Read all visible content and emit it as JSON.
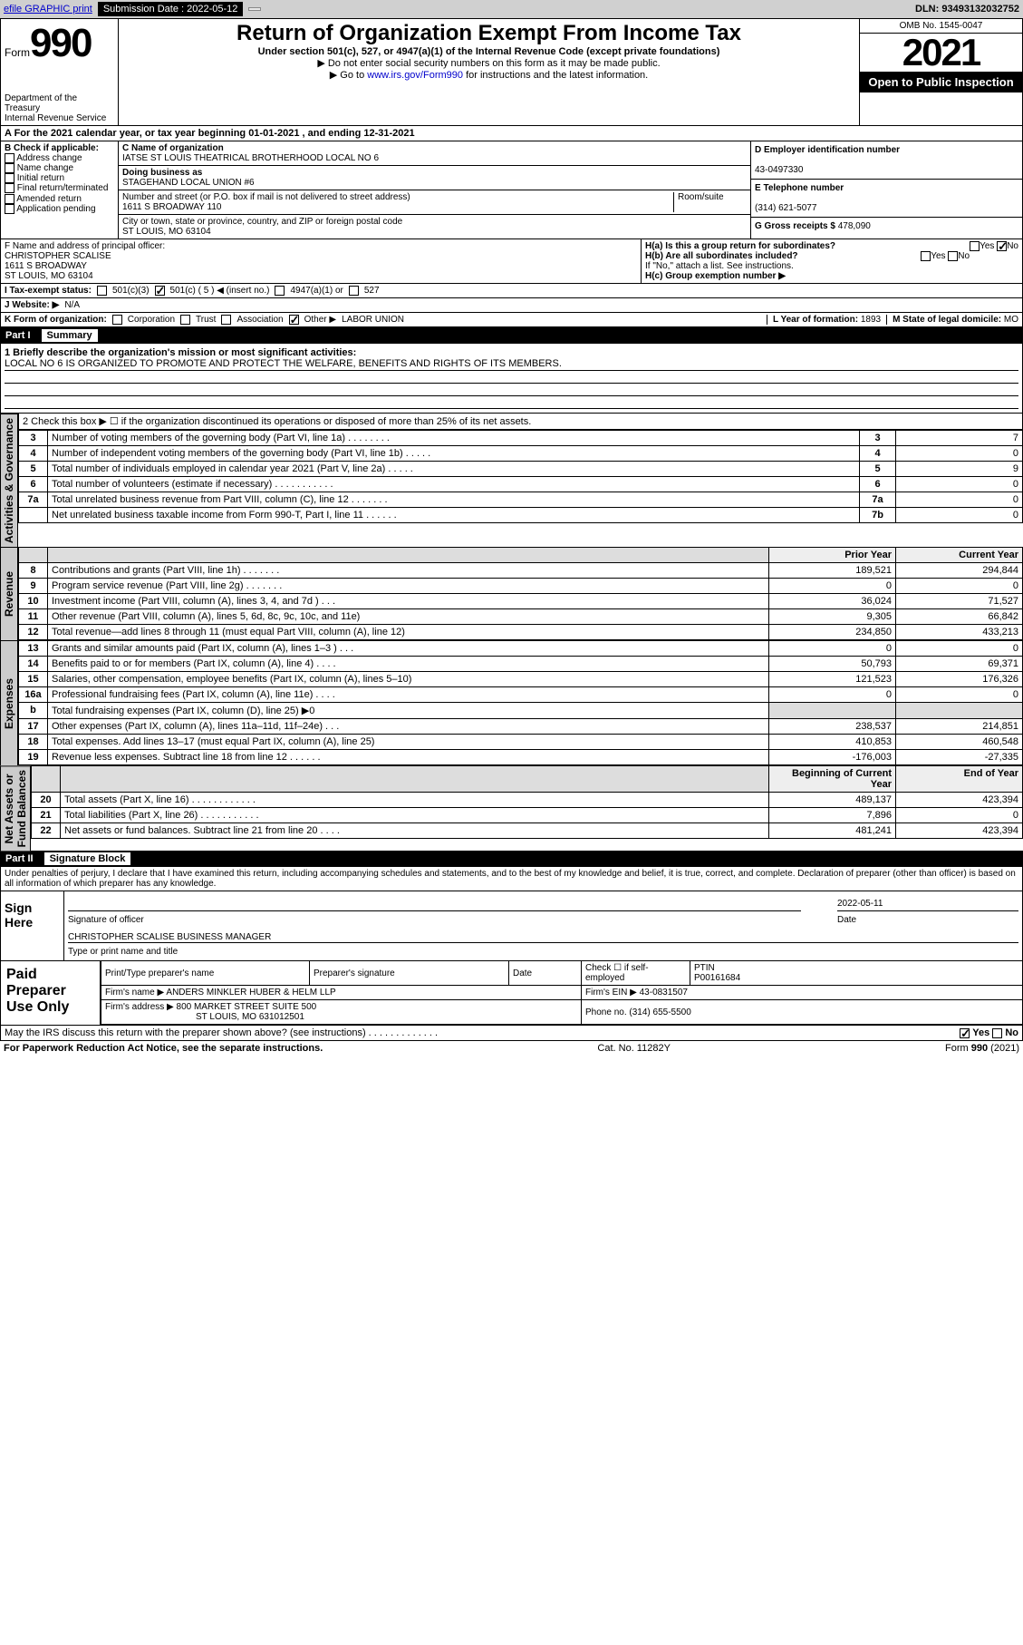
{
  "topbar": {
    "efile_link": "efile GRAPHIC print",
    "submission_label": "Submission Date : 2022-05-12",
    "dln": "DLN: 93493132032752"
  },
  "header": {
    "form_label": "Form",
    "form_number": "990",
    "dept": "Department of the Treasury",
    "irs": "Internal Revenue Service",
    "title": "Return of Organization Exempt From Income Tax",
    "sub1": "Under section 501(c), 527, or 4947(a)(1) of the Internal Revenue Code (except private foundations)",
    "sub2": "▶ Do not enter social security numbers on this form as it may be made public.",
    "sub3_pre": "▶ Go to ",
    "sub3_link": "www.irs.gov/Form990",
    "sub3_post": " for instructions and the latest information.",
    "omb": "OMB No. 1545-0047",
    "year": "2021",
    "open": "Open to Public Inspection"
  },
  "row_a": "A For the 2021 calendar year, or tax year beginning 01-01-2021   , and ending 12-31-2021",
  "block_b": {
    "label": "B Check if applicable:",
    "items": [
      "Address change",
      "Name change",
      "Initial return",
      "Final return/terminated",
      "Amended return",
      "Application pending"
    ]
  },
  "block_c": {
    "name_lbl": "C Name of organization",
    "name": "IATSE ST LOUIS THEATRICAL BROTHERHOOD LOCAL NO 6",
    "dba_lbl": "Doing business as",
    "dba": "STAGEHAND LOCAL UNION #6",
    "addr_lbl": "Number and street (or P.O. box if mail is not delivered to street address)",
    "room_lbl": "Room/suite",
    "addr": "1611 S BROADWAY 110",
    "city_lbl": "City or town, state or province, country, and ZIP or foreign postal code",
    "city": "ST LOUIS, MO  63104"
  },
  "block_d": {
    "d_lbl": "D Employer identification number",
    "d_val": "43-0497330",
    "e_lbl": "E Telephone number",
    "e_val": "(314) 621-5077",
    "g_lbl": "G Gross receipts $",
    "g_val": "478,090"
  },
  "block_f": {
    "lbl": "F Name and address of principal officer:",
    "name": "CHRISTOPHER SCALISE",
    "addr1": "1611 S BROADWAY",
    "addr2": "ST LOUIS, MO  63104"
  },
  "block_h": {
    "ha": "H(a)  Is this a group return for subordinates?",
    "hb": "H(b)  Are all subordinates included?",
    "hb_note": "If \"No,\" attach a list. See instructions.",
    "hc": "H(c)  Group exemption number ▶",
    "yes": "Yes",
    "no": "No"
  },
  "row_i": {
    "lbl": "I   Tax-exempt status:",
    "c3": "501(c)(3)",
    "c5": "501(c) ( 5 ) ◀ (insert no.)",
    "a1": "4947(a)(1) or",
    "s527": "527"
  },
  "row_j": {
    "lbl": "J   Website: ▶",
    "val": "N/A"
  },
  "row_k": {
    "lbl": "K Form of organization:",
    "corp": "Corporation",
    "trust": "Trust",
    "assoc": "Association",
    "other": "Other ▶",
    "other_val": "LABOR UNION",
    "l_lbl": "L Year of formation:",
    "l_val": "1893",
    "m_lbl": "M State of legal domicile:",
    "m_val": "MO"
  },
  "part1": {
    "part": "Part I",
    "title": "Summary",
    "line1_lbl": "1  Briefly describe the organization's mission or most significant activities:",
    "line1_val": "LOCAL NO 6 IS ORGANIZED TO PROMOTE AND PROTECT THE WELFARE, BENEFITS AND RIGHTS OF ITS MEMBERS.",
    "line2": "2   Check this box ▶ ☐  if the organization discontinued its operations or disposed of more than 25% of its net assets.",
    "governance": [
      {
        "n": "3",
        "t": "Number of voting members of the governing body (Part VI, line 1a)   .   .   .   .   .   .   .   .",
        "b": "3",
        "v": "7"
      },
      {
        "n": "4",
        "t": "Number of independent voting members of the governing body (Part VI, line 1b)  .   .   .   .   .",
        "b": "4",
        "v": "0"
      },
      {
        "n": "5",
        "t": "Total number of individuals employed in calendar year 2021 (Part V, line 2a)   .   .   .   .   .",
        "b": "5",
        "v": "9"
      },
      {
        "n": "6",
        "t": "Total number of volunteers (estimate if necessary)   .   .   .   .   .   .   .   .   .   .   .",
        "b": "6",
        "v": "0"
      },
      {
        "n": "7a",
        "t": "Total unrelated business revenue from Part VIII, column (C), line 12  .   .   .   .   .   .   .",
        "b": "7a",
        "v": "0"
      },
      {
        "n": "",
        "t": "Net unrelated business taxable income from Form 990-T, Part I, line 11  .   .   .   .   .   .",
        "b": "7b",
        "v": "0"
      }
    ],
    "col_hdr_prior": "Prior Year",
    "col_hdr_curr": "Current Year",
    "revenue": [
      {
        "n": "8",
        "t": "Contributions and grants (Part VIII, line 1h)   .   .   .   .   .   .   .",
        "p": "189,521",
        "c": "294,844"
      },
      {
        "n": "9",
        "t": "Program service revenue (Part VIII, line 2g)   .   .   .   .   .   .   .",
        "p": "0",
        "c": "0"
      },
      {
        "n": "10",
        "t": "Investment income (Part VIII, column (A), lines 3, 4, and 7d )   .   .   .",
        "p": "36,024",
        "c": "71,527"
      },
      {
        "n": "11",
        "t": "Other revenue (Part VIII, column (A), lines 5, 6d, 8c, 9c, 10c, and 11e)",
        "p": "9,305",
        "c": "66,842"
      },
      {
        "n": "12",
        "t": "Total revenue—add lines 8 through 11 (must equal Part VIII, column (A), line 12)",
        "p": "234,850",
        "c": "433,213"
      }
    ],
    "expenses": [
      {
        "n": "13",
        "t": "Grants and similar amounts paid (Part IX, column (A), lines 1–3 )   .   .   .",
        "p": "0",
        "c": "0"
      },
      {
        "n": "14",
        "t": "Benefits paid to or for members (Part IX, column (A), line 4)   .   .   .   .",
        "p": "50,793",
        "c": "69,371"
      },
      {
        "n": "15",
        "t": "Salaries, other compensation, employee benefits (Part IX, column (A), lines 5–10)",
        "p": "121,523",
        "c": "176,326"
      },
      {
        "n": "16a",
        "t": "Professional fundraising fees (Part IX, column (A), line 11e)   .   .   .   .",
        "p": "0",
        "c": "0"
      },
      {
        "n": "b",
        "t": "Total fundraising expenses (Part IX, column (D), line 25) ▶0",
        "p": "",
        "c": "",
        "shade": true
      },
      {
        "n": "17",
        "t": "Other expenses (Part IX, column (A), lines 11a–11d, 11f–24e)  .   .   .",
        "p": "238,537",
        "c": "214,851"
      },
      {
        "n": "18",
        "t": "Total expenses. Add lines 13–17 (must equal Part IX, column (A), line 25)",
        "p": "410,853",
        "c": "460,548"
      },
      {
        "n": "19",
        "t": "Revenue less expenses. Subtract line 18 from line 12  .   .   .   .   .   .",
        "p": "-176,003",
        "c": "-27,335"
      }
    ],
    "col_hdr_beg": "Beginning of Current Year",
    "col_hdr_end": "End of Year",
    "netassets": [
      {
        "n": "20",
        "t": "Total assets (Part X, line 16)  .   .   .   .   .   .   .   .   .   .   .   .",
        "p": "489,137",
        "c": "423,394"
      },
      {
        "n": "21",
        "t": "Total liabilities (Part X, line 26)  .   .   .   .   .   .   .   .   .   .   .",
        "p": "7,896",
        "c": "0"
      },
      {
        "n": "22",
        "t": "Net assets or fund balances. Subtract line 21 from line 20  .   .   .   .",
        "p": "481,241",
        "c": "423,394"
      }
    ]
  },
  "part2": {
    "part": "Part II",
    "title": "Signature Block",
    "decl": "Under penalties of perjury, I declare that I have examined this return, including accompanying schedules and statements, and to the best of my knowledge and belief, it is true, correct, and complete. Declaration of preparer (other than officer) is based on all information of which preparer has any knowledge.",
    "sign_here": "Sign Here",
    "sig_off": "Signature of officer",
    "date_lbl": "Date",
    "date": "2022-05-11",
    "name": "CHRISTOPHER SCALISE  BUSINESS MANAGER",
    "name_lbl": "Type or print name and title",
    "paid": "Paid Preparer Use Only",
    "prep_name_lbl": "Print/Type preparer's name",
    "prep_sig_lbl": "Preparer's signature",
    "check_lbl": "Check ☐ if self-employed",
    "ptin_lbl": "PTIN",
    "ptin": "P00161684",
    "firm_name_lbl": "Firm's name   ▶",
    "firm_name": "ANDERS MINKLER HUBER & HELM LLP",
    "firm_ein_lbl": "Firm's EIN ▶",
    "firm_ein": "43-0831507",
    "firm_addr_lbl": "Firm's address ▶",
    "firm_addr": "800 MARKET STREET SUITE 500",
    "firm_city": "ST LOUIS, MO  631012501",
    "phone_lbl": "Phone no.",
    "phone": "(314) 655-5500",
    "discuss": "May the IRS discuss this return with the preparer shown above? (see instructions)   .   .   .   .   .   .   .   .   .   .   .   .   ."
  },
  "footer": {
    "l": "For Paperwork Reduction Act Notice, see the separate instructions.",
    "c": "Cat. No. 11282Y",
    "r": "Form 990 (2021)"
  },
  "colors": {
    "link": "#0000cc",
    "shade": "#dddddd",
    "black": "#000000"
  }
}
